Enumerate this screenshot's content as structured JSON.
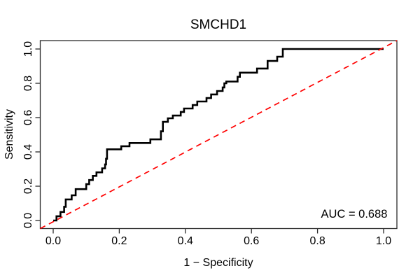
{
  "figure": {
    "background": "#ffffff",
    "text_color": "#000000",
    "box_color": "#2b2b2b"
  },
  "chart_data": {
    "type": "line",
    "subtype": "roc-curve-step",
    "title": "SMCHD1",
    "xlabel": "1 − Specificity",
    "ylabel": "Sensitivity",
    "xlim": [
      0.0,
      1.0
    ],
    "ylim": [
      0.0,
      1.0
    ],
    "grid": false,
    "x_tick_labels": [
      "0.0",
      "0.2",
      "0.4",
      "0.6",
      "0.8",
      "1.0"
    ],
    "x_tick_values": [
      0.0,
      0.2,
      0.4,
      0.6,
      0.8,
      1.0
    ],
    "y_tick_labels": [
      "0.0",
      "0.2",
      "0.4",
      "0.6",
      "0.8",
      "1.0"
    ],
    "y_tick_values": [
      0.0,
      0.2,
      0.4,
      0.6,
      0.8,
      1.0
    ],
    "annotation": {
      "text": "AUC = 0.688",
      "auc_value": 0.688
    },
    "series": [
      {
        "name": "roc-curve",
        "color": "#000000",
        "style": "solid",
        "line_width": 2.6,
        "points": [
          [
            0.0,
            0.0
          ],
          [
            0.01,
            0.0
          ],
          [
            0.01,
            0.025
          ],
          [
            0.022,
            0.025
          ],
          [
            0.022,
            0.05
          ],
          [
            0.033,
            0.05
          ],
          [
            0.033,
            0.08
          ],
          [
            0.038,
            0.08
          ],
          [
            0.038,
            0.123
          ],
          [
            0.056,
            0.123
          ],
          [
            0.056,
            0.147
          ],
          [
            0.068,
            0.147
          ],
          [
            0.068,
            0.183
          ],
          [
            0.1,
            0.183
          ],
          [
            0.1,
            0.212
          ],
          [
            0.109,
            0.212
          ],
          [
            0.109,
            0.236
          ],
          [
            0.12,
            0.236
          ],
          [
            0.12,
            0.26
          ],
          [
            0.131,
            0.26
          ],
          [
            0.131,
            0.281
          ],
          [
            0.148,
            0.281
          ],
          [
            0.148,
            0.304
          ],
          [
            0.157,
            0.304
          ],
          [
            0.157,
            0.327
          ],
          [
            0.16,
            0.327
          ],
          [
            0.16,
            0.36
          ],
          [
            0.163,
            0.36
          ],
          [
            0.163,
            0.415
          ],
          [
            0.206,
            0.415
          ],
          [
            0.206,
            0.433
          ],
          [
            0.231,
            0.433
          ],
          [
            0.231,
            0.452
          ],
          [
            0.294,
            0.452
          ],
          [
            0.294,
            0.473
          ],
          [
            0.326,
            0.473
          ],
          [
            0.326,
            0.52
          ],
          [
            0.332,
            0.52
          ],
          [
            0.332,
            0.575
          ],
          [
            0.347,
            0.575
          ],
          [
            0.347,
            0.596
          ],
          [
            0.362,
            0.596
          ],
          [
            0.362,
            0.612
          ],
          [
            0.386,
            0.612
          ],
          [
            0.386,
            0.633
          ],
          [
            0.396,
            0.633
          ],
          [
            0.396,
            0.653
          ],
          [
            0.422,
            0.653
          ],
          [
            0.422,
            0.673
          ],
          [
            0.436,
            0.673
          ],
          [
            0.436,
            0.694
          ],
          [
            0.464,
            0.694
          ],
          [
            0.464,
            0.714
          ],
          [
            0.478,
            0.714
          ],
          [
            0.478,
            0.735
          ],
          [
            0.496,
            0.735
          ],
          [
            0.496,
            0.755
          ],
          [
            0.513,
            0.755
          ],
          [
            0.513,
            0.776
          ],
          [
            0.518,
            0.776
          ],
          [
            0.518,
            0.8
          ],
          [
            0.524,
            0.8
          ],
          [
            0.524,
            0.81
          ],
          [
            0.558,
            0.81
          ],
          [
            0.558,
            0.838
          ],
          [
            0.565,
            0.838
          ],
          [
            0.565,
            0.862
          ],
          [
            0.617,
            0.862
          ],
          [
            0.617,
            0.886
          ],
          [
            0.649,
            0.886
          ],
          [
            0.649,
            0.93
          ],
          [
            0.678,
            0.93
          ],
          [
            0.678,
            0.955
          ],
          [
            0.695,
            0.955
          ],
          [
            0.695,
            1.0
          ],
          [
            1.0,
            1.0
          ]
        ]
      },
      {
        "name": "chance-diagonal",
        "color": "#ff0000",
        "style": "dashed",
        "line_width": 1.7,
        "spans_full_box": true,
        "points": [
          [
            0.0,
            0.0
          ],
          [
            1.0,
            1.0
          ]
        ]
      }
    ]
  }
}
